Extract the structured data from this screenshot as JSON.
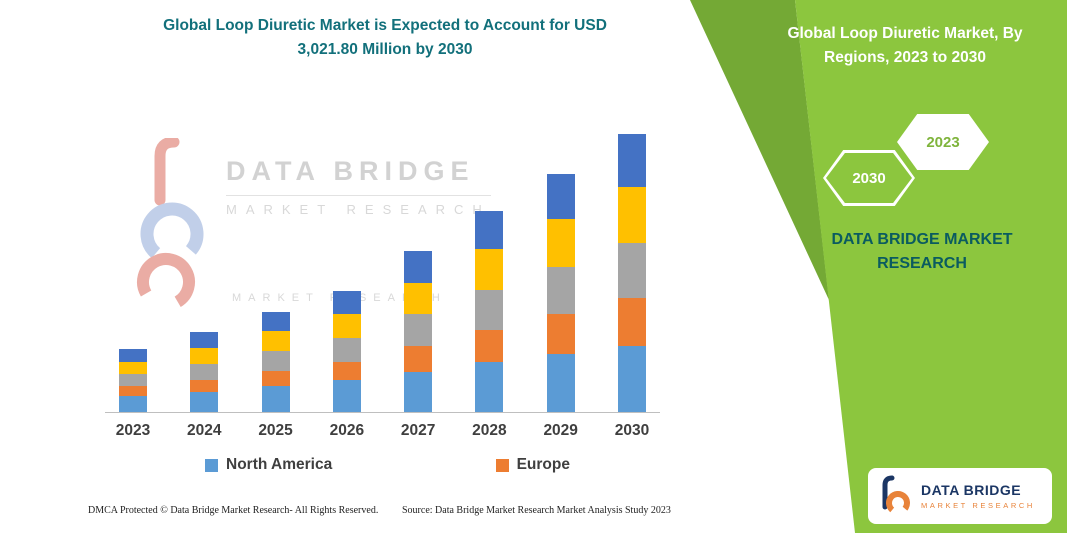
{
  "page": {
    "title_line1": "Global Loop Diuretic Market is Expected to Account for USD",
    "title_line2": "3,021.80 Million by 2030"
  },
  "colors": {
    "teal_title": "#12707B",
    "panel_green": "#8CC63E",
    "panel_green_dark": "#74A935",
    "brand_teal": "#0A5B60",
    "logo_navy": "#1B3664",
    "logo_orange": "#E8833A"
  },
  "chart_data": {
    "type": "bar",
    "stacked": true,
    "title": "Global Loop Diuretic Market, By Regions, 2023 to 2030",
    "unit": "USD Million",
    "categories": [
      "2023",
      "2024",
      "2025",
      "2026",
      "2027",
      "2028",
      "2029",
      "2030"
    ],
    "ylim": [
      0,
      3100
    ],
    "grid": false,
    "legend_position": "bottom",
    "series": [
      {
        "name": "North America",
        "color": "#5B9BD5",
        "values": [
          173,
          217,
          282,
          347,
          433,
          542,
          628,
          715
        ]
      },
      {
        "name": "Europe",
        "color": "#ED7D31",
        "values": [
          108,
          130,
          162,
          195,
          282,
          347,
          433,
          520
        ]
      },
      {
        "name": "",
        "color": "#A5A5A5",
        "values": [
          130,
          173,
          217,
          260,
          347,
          433,
          520,
          606
        ]
      },
      {
        "name": "",
        "color": "#FFC000",
        "values": [
          130,
          173,
          217,
          260,
          347,
          455,
          520,
          606
        ]
      },
      {
        "name": "",
        "color": "#4472C4",
        "values": [
          141,
          173,
          206,
          260,
          347,
          412,
          487,
          574.8
        ]
      }
    ],
    "legend": [
      {
        "label": "North America",
        "color": "#5B9BD5"
      },
      {
        "label": "Europe",
        "color": "#ED7D31"
      }
    ],
    "totals_note": "2030 total = 3,021.80 USD Million"
  },
  "right_panel": {
    "title_line1": "Global Loop Diuretic Market, By",
    "title_line2": "Regions, 2023 to 2030",
    "hex_left": "2030",
    "hex_right": "2023",
    "brand_line1": "DATA BRIDGE MARKET",
    "brand_line2": "RESEARCH"
  },
  "watermark": {
    "line1": "DATA BRIDGE",
    "line2": "MARKET RESEARCH",
    "line3": "MARKET RESEARCH"
  },
  "logo": {
    "title": "DATA BRIDGE",
    "subtitle": "MARKET RESEARCH"
  },
  "footer": {
    "dmca": "DMCA Protected © Data Bridge Market Research-  All Rights Reserved.",
    "source": "Source: Data Bridge Market Research  Market Analysis Study 2023"
  }
}
